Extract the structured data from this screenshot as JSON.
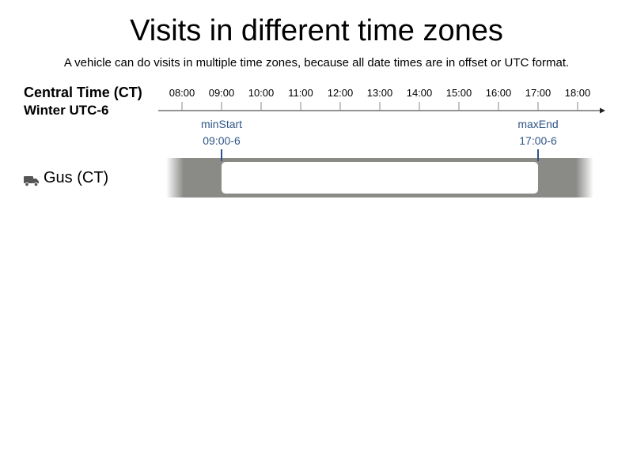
{
  "title": "Visits in different time zones",
  "subtitle": "A vehicle can do visits in multiple time zones, because all date times are in offset or UTC format.",
  "timezone": {
    "name": "Central Time (CT)",
    "offset_label": "Winter UTC-6"
  },
  "axis": {
    "ticks": [
      "08:00",
      "09:00",
      "10:00",
      "11:00",
      "12:00",
      "13:00",
      "14:00",
      "15:00",
      "16:00",
      "17:00",
      "18:00"
    ],
    "start_hour": 8,
    "end_hour": 18
  },
  "markers": [
    {
      "label": "minStart",
      "value_label": "09:00-6",
      "hour": 9
    },
    {
      "label": "maxEnd",
      "value_label": "17:00-6",
      "hour": 17
    }
  ],
  "vehicle": {
    "icon": "truck-icon",
    "name": "Gus (CT)",
    "window_start_hour": 9,
    "window_end_hour": 17
  },
  "colors": {
    "bar": "#8a8b87",
    "window": "#ffffff",
    "marker": "#2f5587",
    "axis": "#555555"
  }
}
